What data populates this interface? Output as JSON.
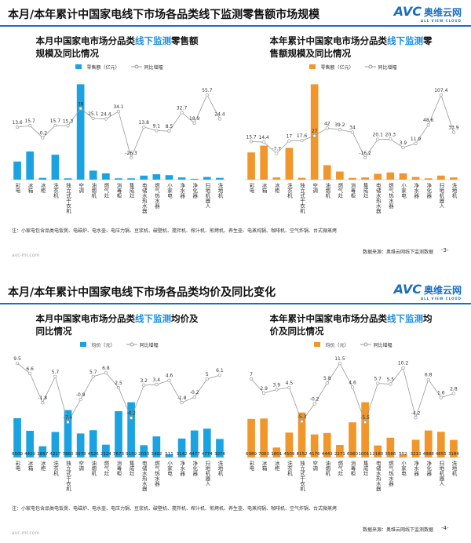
{
  "slides": [
    {
      "title": "本月/本年累计中国家电线下市场各品类线下监测零售额市场规模",
      "logo": {
        "mark": "AVC",
        "name": "奥维云网",
        "sub": "ALL VIEW CLOUD"
      },
      "charts": [
        {
          "type": "bar",
          "title_parts": [
            "本月中国家电市场分品类",
            "线下监测",
            "零售额规模及同比情况"
          ],
          "highlight": 1,
          "highlight_color": "#1a8fe0",
          "categories": [
            "彩电",
            "冰箱",
            "冰柜",
            "洗衣机",
            "独立式干衣机",
            "空调",
            "油烟机",
            "燃气灶",
            "消毒柜",
            "集成灶",
            "电储水热水器",
            "燃气热水器",
            "小家电",
            "净水器",
            "净化器",
            "扫地机器人",
            "洗地机"
          ],
          "series": [
            {
              "name": "零售额（亿元）",
              "color": "#1aa3e0",
              "values": [
                40,
                62,
                4,
                55,
                3,
                210,
                20,
                14,
                3,
                3,
                9,
                12,
                10,
                5,
                2,
                6,
                4
              ]
            },
            {
              "name": "同比增幅",
              "color": "#9a9a9a",
              "axis": "y2",
              "values": [
                13.6,
                15.7,
                -0.2,
                15.7,
                15.3,
                38.0,
                25.1,
                24.4,
                34.1,
                -26.3,
                13.8,
                9.1,
                8.5,
                32.7,
                18.9,
                55.7,
                24.4
              ]
            }
          ]
        },
        {
          "type": "bar",
          "title_parts": [
            "本年累计中国家电市场分品类",
            "线下监测",
            "零售额规模及同比情况"
          ],
          "highlight": 1,
          "highlight_color": "#1a8fe0",
          "categories": [
            "彩电",
            "冰箱",
            "冰柜",
            "洗衣机",
            "独立式干衣机",
            "空调",
            "油烟机",
            "燃气灶",
            "消毒柜",
            "集成灶",
            "电储水热水器",
            "燃气热水器",
            "小家电",
            "净水器",
            "净化器",
            "扫地机器人",
            "洗地机"
          ],
          "series": [
            {
              "name": "零售额（亿元）",
              "color": "#f0962a",
              "values": [
                60,
                75,
                5,
                70,
                4,
                210,
                32,
                18,
                4,
                5,
                13,
                16,
                14,
                6,
                3,
                9,
                5
              ]
            },
            {
              "name": "同比增幅",
              "color": "#9a9a9a",
              "axis": "y2",
              "values": [
                15.7,
                14.4,
                -7.7,
                17.0,
                17.6,
                27.0,
                42.0,
                39.2,
                34.0,
                -16.2,
                20.1,
                20.3,
                3.9,
                11.9,
                48.6,
                107.4,
                33.9
              ]
            }
          ]
        }
      ],
      "note": "注：小家电包含品类电饭煲、电磁炉、电水壶、电压力锅、豆浆机、破壁机、搅拌机、榨汁机、煎烤机、养生壶、电蒸炖锅、咖啡机、空气炸锅、台式微蒸烤",
      "source": "数据来源：奥维云网线下监测数据",
      "page": "-3-",
      "url": "avc-mr.com"
    },
    {
      "title": "本月/本年累计中国家电线下市场各品类均价及同比变化",
      "logo": {
        "mark": "AVC",
        "name": "奥维云网",
        "sub": "ALL VIEW CLOUD"
      },
      "charts": [
        {
          "type": "bar",
          "title_parts": [
            "本月中国家电市场分品类",
            "线下监测",
            "均价及同比情况"
          ],
          "highlight": 1,
          "highlight_color": "#1a8fe0",
          "categories": [
            "彩电",
            "冰箱",
            "冰柜",
            "洗衣机",
            "独立式干衣机",
            "空调",
            "油烟机",
            "燃气灶",
            "消毒柜",
            "集成灶",
            "电储水热水器",
            "燃气热水器",
            "小家电",
            "净水器",
            "净化器",
            "扫地机器人",
            "洗地机"
          ],
          "series": [
            {
              "name": "均价（元）",
              "color": "#1aa3e0",
              "values": [
                6509,
                4419,
                1857,
                4227,
                7860,
                3978,
                4526,
                2124,
                7673,
                9159,
                2033,
                3492,
                511,
                3142,
                4477,
                4774,
                3074
              ]
            },
            {
              "name": "同比增幅",
              "color": "#9a9a9a",
              "axis": "y2",
              "values": [
                9.5,
                6.6,
                -1.8,
                5.7,
                -7.4,
                -0.9,
                5.7,
                6.8,
                2.5,
                -6.2,
                3.2,
                3.4,
                4.6,
                -1.8,
                -0.2,
                5.0,
                6.1
              ]
            }
          ]
        },
        {
          "type": "bar",
          "title_parts": [
            "本年累计中国家电市场分品类",
            "线下监测",
            "均价及同比情况"
          ],
          "highlight": 1,
          "highlight_color": "#1a8fe0",
          "categories": [
            "彩电",
            "冰箱",
            "冰柜",
            "洗衣机",
            "独立式干衣机",
            "空调",
            "油烟机",
            "燃气灶",
            "消毒柜",
            "集成灶",
            "电储水热水器",
            "燃气热水器",
            "小家电",
            "净水器",
            "净化器",
            "扫地机器人",
            "洗地机"
          ],
          "series": [
            {
              "name": "均价（元）",
              "color": "#f0962a",
              "values": [
                6989,
                7063,
                1801,
                4509,
                8152,
                4176,
                4443,
                2271,
                6360,
                10011,
                2180,
                3586,
                552,
                3213,
                4888,
                4655,
                3184
              ]
            },
            {
              "name": "同比增幅",
              "color": "#9a9a9a",
              "axis": "y2",
              "values": [
                7.0,
                2.9,
                3.9,
                4.5,
                -5.3,
                -0.2,
                5.8,
                11.5,
                4.6,
                -5.5,
                5.7,
                5.5,
                10.2,
                -4.2,
                6.8,
                1.6,
                2.8
              ]
            }
          ]
        }
      ],
      "note": "注：小家电包含品类电饭煲、电磁炉、电水壶、电压力锅、豆浆机、破壁机、搅拌机、榨汁机、煎烤机、养生壶、电蒸炖锅、咖啡机、空气炸锅、台式微蒸烤",
      "source": "数据来源：奥维云网线下监测数据",
      "page": "-4-",
      "url": "avc-mr.com"
    }
  ]
}
